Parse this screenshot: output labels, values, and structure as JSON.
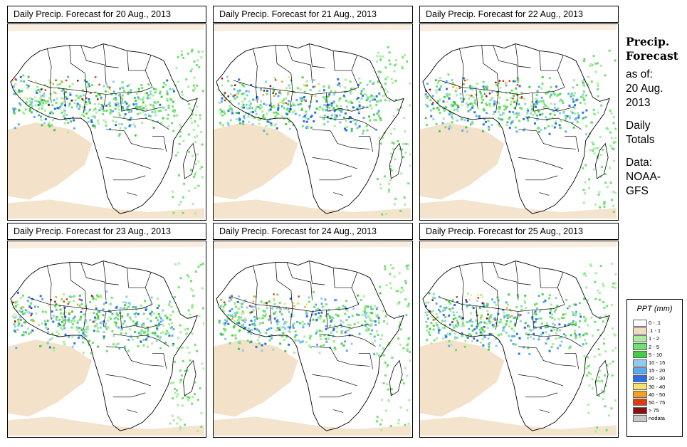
{
  "panels": [
    {
      "title": "Daily Precip. Forecast for  20 Aug., 2013"
    },
    {
      "title": "Daily Precip. Forecast for  21 Aug., 2013"
    },
    {
      "title": "Daily Precip. Forecast for  22 Aug., 2013"
    },
    {
      "title": "Daily Precip. Forecast for  23 Aug., 2013"
    },
    {
      "title": "Daily Precip. Forecast for  24 Aug., 2013"
    },
    {
      "title": "Daily Precip. Forecast for  25 Aug., 2013"
    }
  ],
  "sidebar": {
    "heading_line1": "Precip.",
    "heading_line2": "Forecast",
    "asof_line1": "as of:",
    "asof_line2": "20 Aug.",
    "asof_line3": "2013",
    "totals_line1": "Daily",
    "totals_line2": "Totals",
    "data_line1": "Data:",
    "data_line2": "NOAA-",
    "data_line3": "GFS"
  },
  "legend": {
    "title": "PPT (mm)",
    "items": [
      {
        "label": "0 - .1",
        "color": "#ffffff"
      },
      {
        "label": ".1 - 1",
        "color": "#f1dcc0"
      },
      {
        "label": "1 - 2",
        "color": "#a8eca0"
      },
      {
        "label": "2 - 5",
        "color": "#6ee06e"
      },
      {
        "label": "5 - 10",
        "color": "#45cc45"
      },
      {
        "label": "10 - 15",
        "color": "#8ecbf2"
      },
      {
        "label": "15 - 20",
        "color": "#5aaaf0"
      },
      {
        "label": "20 - 30",
        "color": "#2a6fe0"
      },
      {
        "label": "30 - 40",
        "color": "#f5e070"
      },
      {
        "label": "40 - 50",
        "color": "#f5a020"
      },
      {
        "label": "50 - 75",
        "color": "#e03a10"
      },
      {
        "label": "> 75",
        "color": "#8a1010"
      },
      {
        "label": "nodata",
        "color": "#c8c8c8"
      }
    ]
  }
}
